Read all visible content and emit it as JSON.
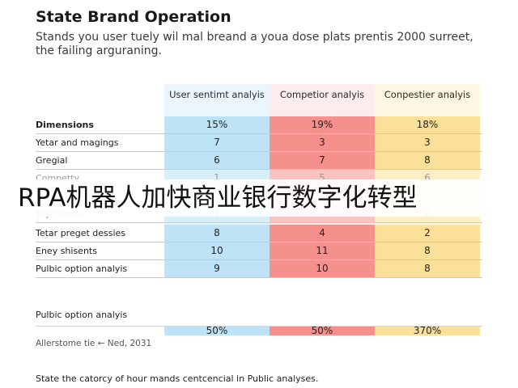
{
  "title": "State Brand Operation",
  "subtitle": "Stands you user tuely wil mal breand a youa dose plats prentis 2000 surreet, the failing arguraning.",
  "table": {
    "headers": [
      "User sentimt analyis",
      "Competior analyis",
      "Conpestier analyis"
    ],
    "rows": [
      {
        "label": "Dimensions",
        "values": [
          "15%",
          "19%",
          "18%"
        ]
      },
      {
        "label": "Yetar and magings",
        "values": [
          "7",
          "3",
          "3"
        ]
      },
      {
        "label": "Gregial",
        "values": [
          "6",
          "7",
          "8"
        ]
      },
      {
        "label": "Competty",
        "values": [
          "1",
          "5",
          "6"
        ]
      },
      {
        "label": "",
        "values": [
          "",
          "",
          ""
        ]
      },
      {
        "label": "Yey comes",
        "values": [
          "1",
          "1",
          "2"
        ]
      },
      {
        "label": "Tetar preget dessies",
        "values": [
          "8",
          "4",
          "2"
        ]
      },
      {
        "label": "Eney shisents",
        "values": [
          "10",
          "11",
          "8"
        ]
      },
      {
        "label": "Pulbic option analyis",
        "values": [
          "9",
          "10",
          "8"
        ]
      }
    ]
  },
  "overlay_text": "RPA机器人加快商业银行数字化转型",
  "summary": {
    "label": "Pulbic option analyis",
    "values": [
      "50%",
      "50%",
      "370%"
    ],
    "note": "Allerstome tie ← Ned, 2031"
  },
  "footer": "State the catorcy of hour mands centcencial in Public analyses.",
  "colors": {
    "col1": "#bfe3f6",
    "col2": "#f6908d",
    "col3": "#fbe09a"
  }
}
